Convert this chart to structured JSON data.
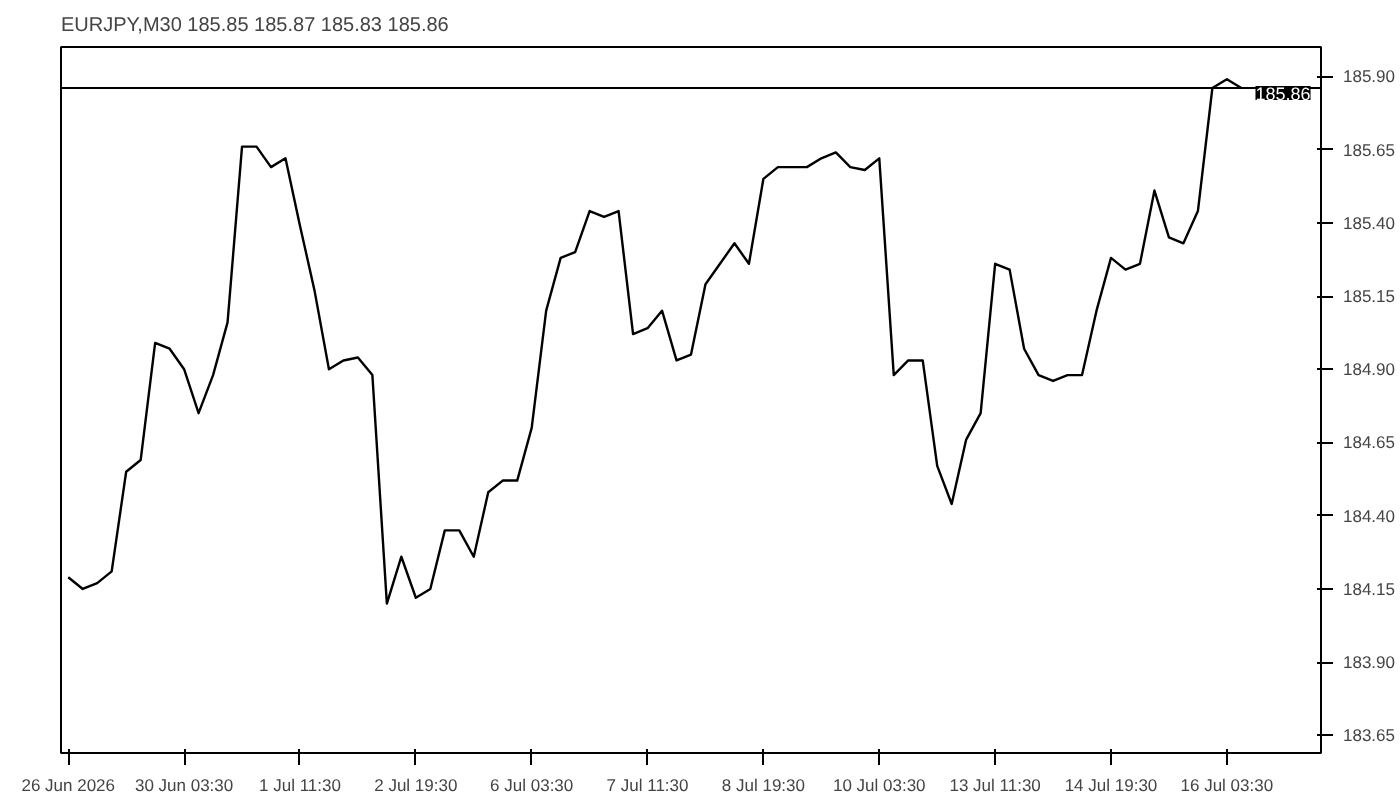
{
  "chart_data": {
    "type": "line",
    "title": "EURJPY,M30  185.85 185.87 185.83 185.86",
    "categories": [
      "26 Jun 2026",
      null,
      null,
      null,
      null,
      null,
      null,
      null,
      "30 Jun 03:30",
      null,
      null,
      null,
      null,
      null,
      null,
      null,
      "1 Jul 11:30",
      null,
      null,
      null,
      null,
      null,
      null,
      null,
      "2 Jul 19:30",
      null,
      null,
      null,
      null,
      null,
      null,
      null,
      "6 Jul 03:30",
      null,
      null,
      null,
      null,
      null,
      null,
      null,
      "7 Jul 11:30",
      null,
      null,
      null,
      null,
      null,
      null,
      null,
      "8 Jul 19:30",
      null,
      null,
      null,
      null,
      null,
      null,
      null,
      "10 Jul 03:30",
      null,
      null,
      null,
      null,
      null,
      null,
      null,
      "13 Jul 11:30",
      null,
      null,
      null,
      null,
      null,
      null,
      null,
      "14 Jul 19:30",
      null,
      null,
      null,
      null,
      null,
      null,
      null,
      "16 Jul 03:30",
      null
    ],
    "series": [
      {
        "color": "#000000",
        "values": [
          184.19,
          184.15,
          184.17,
          184.21,
          184.55,
          184.59,
          184.99,
          184.97,
          184.9,
          184.75,
          184.88,
          185.06,
          185.66,
          185.66,
          185.59,
          185.62,
          185.39,
          185.17,
          184.9,
          184.93,
          184.94,
          184.88,
          184.1,
          184.26,
          184.12,
          184.15,
          184.35,
          184.35,
          184.26,
          184.48,
          184.52,
          184.52,
          184.7,
          185.1,
          185.28,
          185.3,
          185.44,
          185.42,
          185.44,
          185.02,
          185.04,
          185.1,
          184.93,
          184.95,
          185.19,
          185.26,
          185.33,
          185.26,
          185.55,
          185.59,
          185.59,
          185.59,
          185.62,
          185.64,
          185.59,
          185.58,
          185.62,
          184.88,
          184.93,
          184.93,
          184.57,
          184.44,
          184.66,
          184.75,
          185.26,
          185.24,
          184.97,
          184.88,
          184.86,
          184.88,
          184.88,
          185.1,
          185.28,
          185.24,
          185.26,
          185.51,
          185.35,
          185.33,
          185.44,
          185.86,
          185.89,
          185.86
        ]
      }
    ],
    "ylim": [
      183.59,
      186.0
    ],
    "yticks": [
      183.65,
      {
        "value": 183.9,
        "label": "183.90"
      },
      184.15,
      {
        "value": 184.4,
        "label": "184.40"
      },
      184.65,
      {
        "value": 184.9,
        "label": "184.90"
      },
      185.15,
      {
        "value": 185.4,
        "label": "185.40"
      },
      185.65,
      {
        "value": 185.9,
        "label": "185.90"
      }
    ],
    "ref_lines": [
      {
        "axis": "y",
        "value": 185.86,
        "label": "185.86",
        "color": "#000000"
      }
    ],
    "grid": false
  }
}
